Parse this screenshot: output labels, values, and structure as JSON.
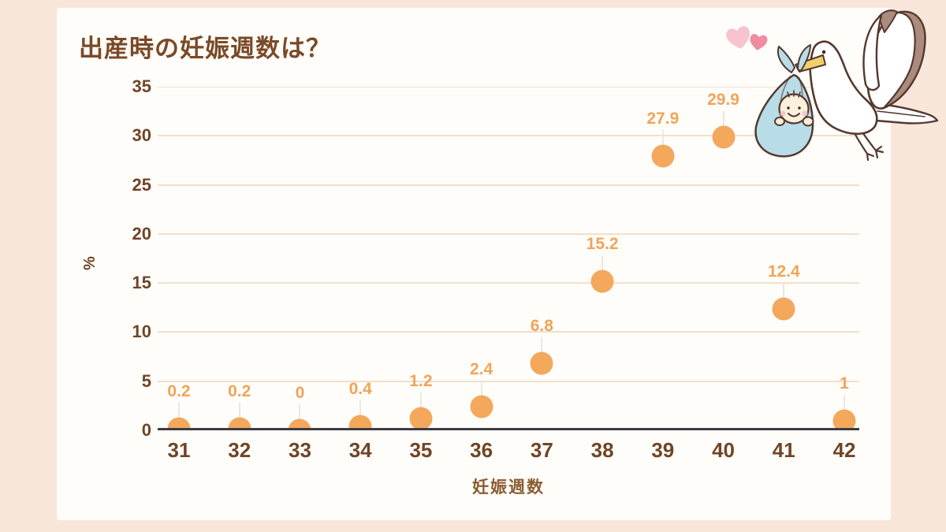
{
  "colors": {
    "page_bg": "#f9e6db",
    "card_bg": "#fffdfa",
    "title_text": "#7a4a27",
    "axis_text": "#6f4526",
    "axis_title_text": "#8a5c33",
    "grid_line": "#f2dfca",
    "axis_line": "#3f3c41",
    "point_fill": "#f3a85c",
    "point_label": "#f0a458",
    "leader_line": "#eae7e4",
    "bundle_blue": "#b9dde8",
    "outline_brown": "#54392e",
    "wing_band": "#ab8b7d",
    "heart_light": "#f6c3ce",
    "heart_dark": "#ee8ca0",
    "beak_yellow": "#f2cf6e",
    "baby_cream": "#faf0dc",
    "blush_pink": "#f4c2c4",
    "eye_dark": "#3a2c24"
  },
  "header": {
    "title": "出産時の妊娠週数は？"
  },
  "chart_data": {
    "type": "scatter",
    "title": "出産時の妊娠週数は？",
    "xlabel": "妊娠週数",
    "ylabel": "%",
    "x": [
      31,
      32,
      33,
      34,
      35,
      36,
      37,
      38,
      39,
      40,
      41,
      42
    ],
    "values": [
      0.2,
      0.2,
      0,
      0.4,
      1.2,
      2.4,
      6.8,
      15.2,
      27.9,
      29.9,
      12.4,
      1
    ],
    "point_labels": [
      "0.2",
      "0.2",
      "0",
      "0.4",
      "1.2",
      "2.4",
      "6.8",
      "15.2",
      "27.9",
      "29.9",
      "12.4",
      "1"
    ],
    "ylim": [
      0,
      35
    ],
    "yticks": [
      0,
      5,
      10,
      15,
      20,
      25,
      30,
      35
    ],
    "grid": true,
    "legend": false
  },
  "decorations": {
    "illustration": "stork carrying baby in blue bundle",
    "hearts": [
      "light-pink-heart",
      "dark-pink-heart"
    ]
  }
}
